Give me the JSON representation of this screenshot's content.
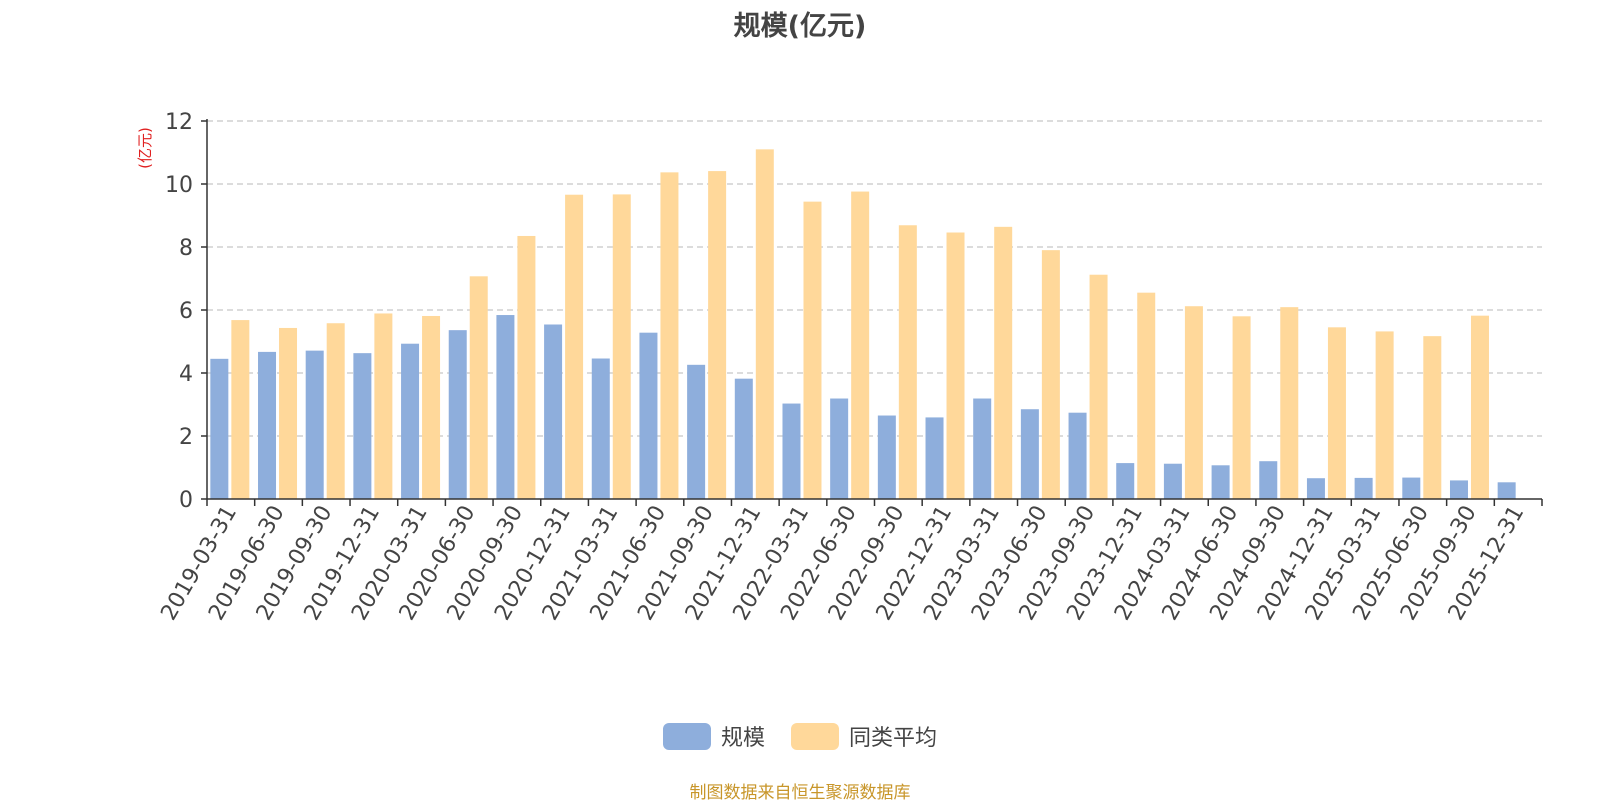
{
  "chart_data": {
    "type": "bar",
    "title": "规模(亿元)",
    "ylabel": "(亿元)",
    "xlabel": "",
    "ylim": [
      0,
      12
    ],
    "yticks": [
      0,
      2,
      4,
      6,
      8,
      10,
      12
    ],
    "grid": true,
    "legend_position": "bottom",
    "categories": [
      "2019-03-31",
      "2019-06-30",
      "2019-09-30",
      "2019-12-31",
      "2020-03-31",
      "2020-06-30",
      "2020-09-30",
      "2020-12-31",
      "2021-03-31",
      "2021-06-30",
      "2021-09-30",
      "2021-12-31",
      "2022-03-31",
      "2022-06-30",
      "2022-09-30",
      "2022-12-31",
      "2023-03-31",
      "2023-06-30",
      "2023-09-30",
      "2023-12-31",
      "2024-03-31",
      "2024-06-30",
      "2024-09-30",
      "2024-12-31",
      "2025-03-31",
      "2025-06-30",
      "2025-09-30",
      "2025-12-31"
    ],
    "series": [
      {
        "name": "规模",
        "color": "#8eaedc",
        "values": [
          4.45,
          4.67,
          4.71,
          4.63,
          4.93,
          5.36,
          5.84,
          5.54,
          4.46,
          5.28,
          4.26,
          3.82,
          3.03,
          3.19,
          2.65,
          2.59,
          3.19,
          2.85,
          2.74,
          1.14,
          1.12,
          1.07,
          1.2,
          0.66,
          0.67,
          0.68,
          0.59,
          0.53
        ]
      },
      {
        "name": "同类平均",
        "color": "#ffd89a",
        "values": [
          5.68,
          5.43,
          5.58,
          5.89,
          5.81,
          7.07,
          8.35,
          9.66,
          9.67,
          10.37,
          10.41,
          11.1,
          9.44,
          9.76,
          8.69,
          8.46,
          8.64,
          7.9,
          7.12,
          6.55,
          6.12,
          5.8,
          6.09,
          5.45,
          5.32,
          5.17,
          5.82,
          null
        ]
      }
    ]
  },
  "source_text": "制图数据来自恒生聚源数据库",
  "colors": {
    "axis": "#333333",
    "grid": "#c8c8c8",
    "tick_text": "#444444",
    "ylabel": "#e02020",
    "source": "#c8962a",
    "title": "#444444"
  }
}
